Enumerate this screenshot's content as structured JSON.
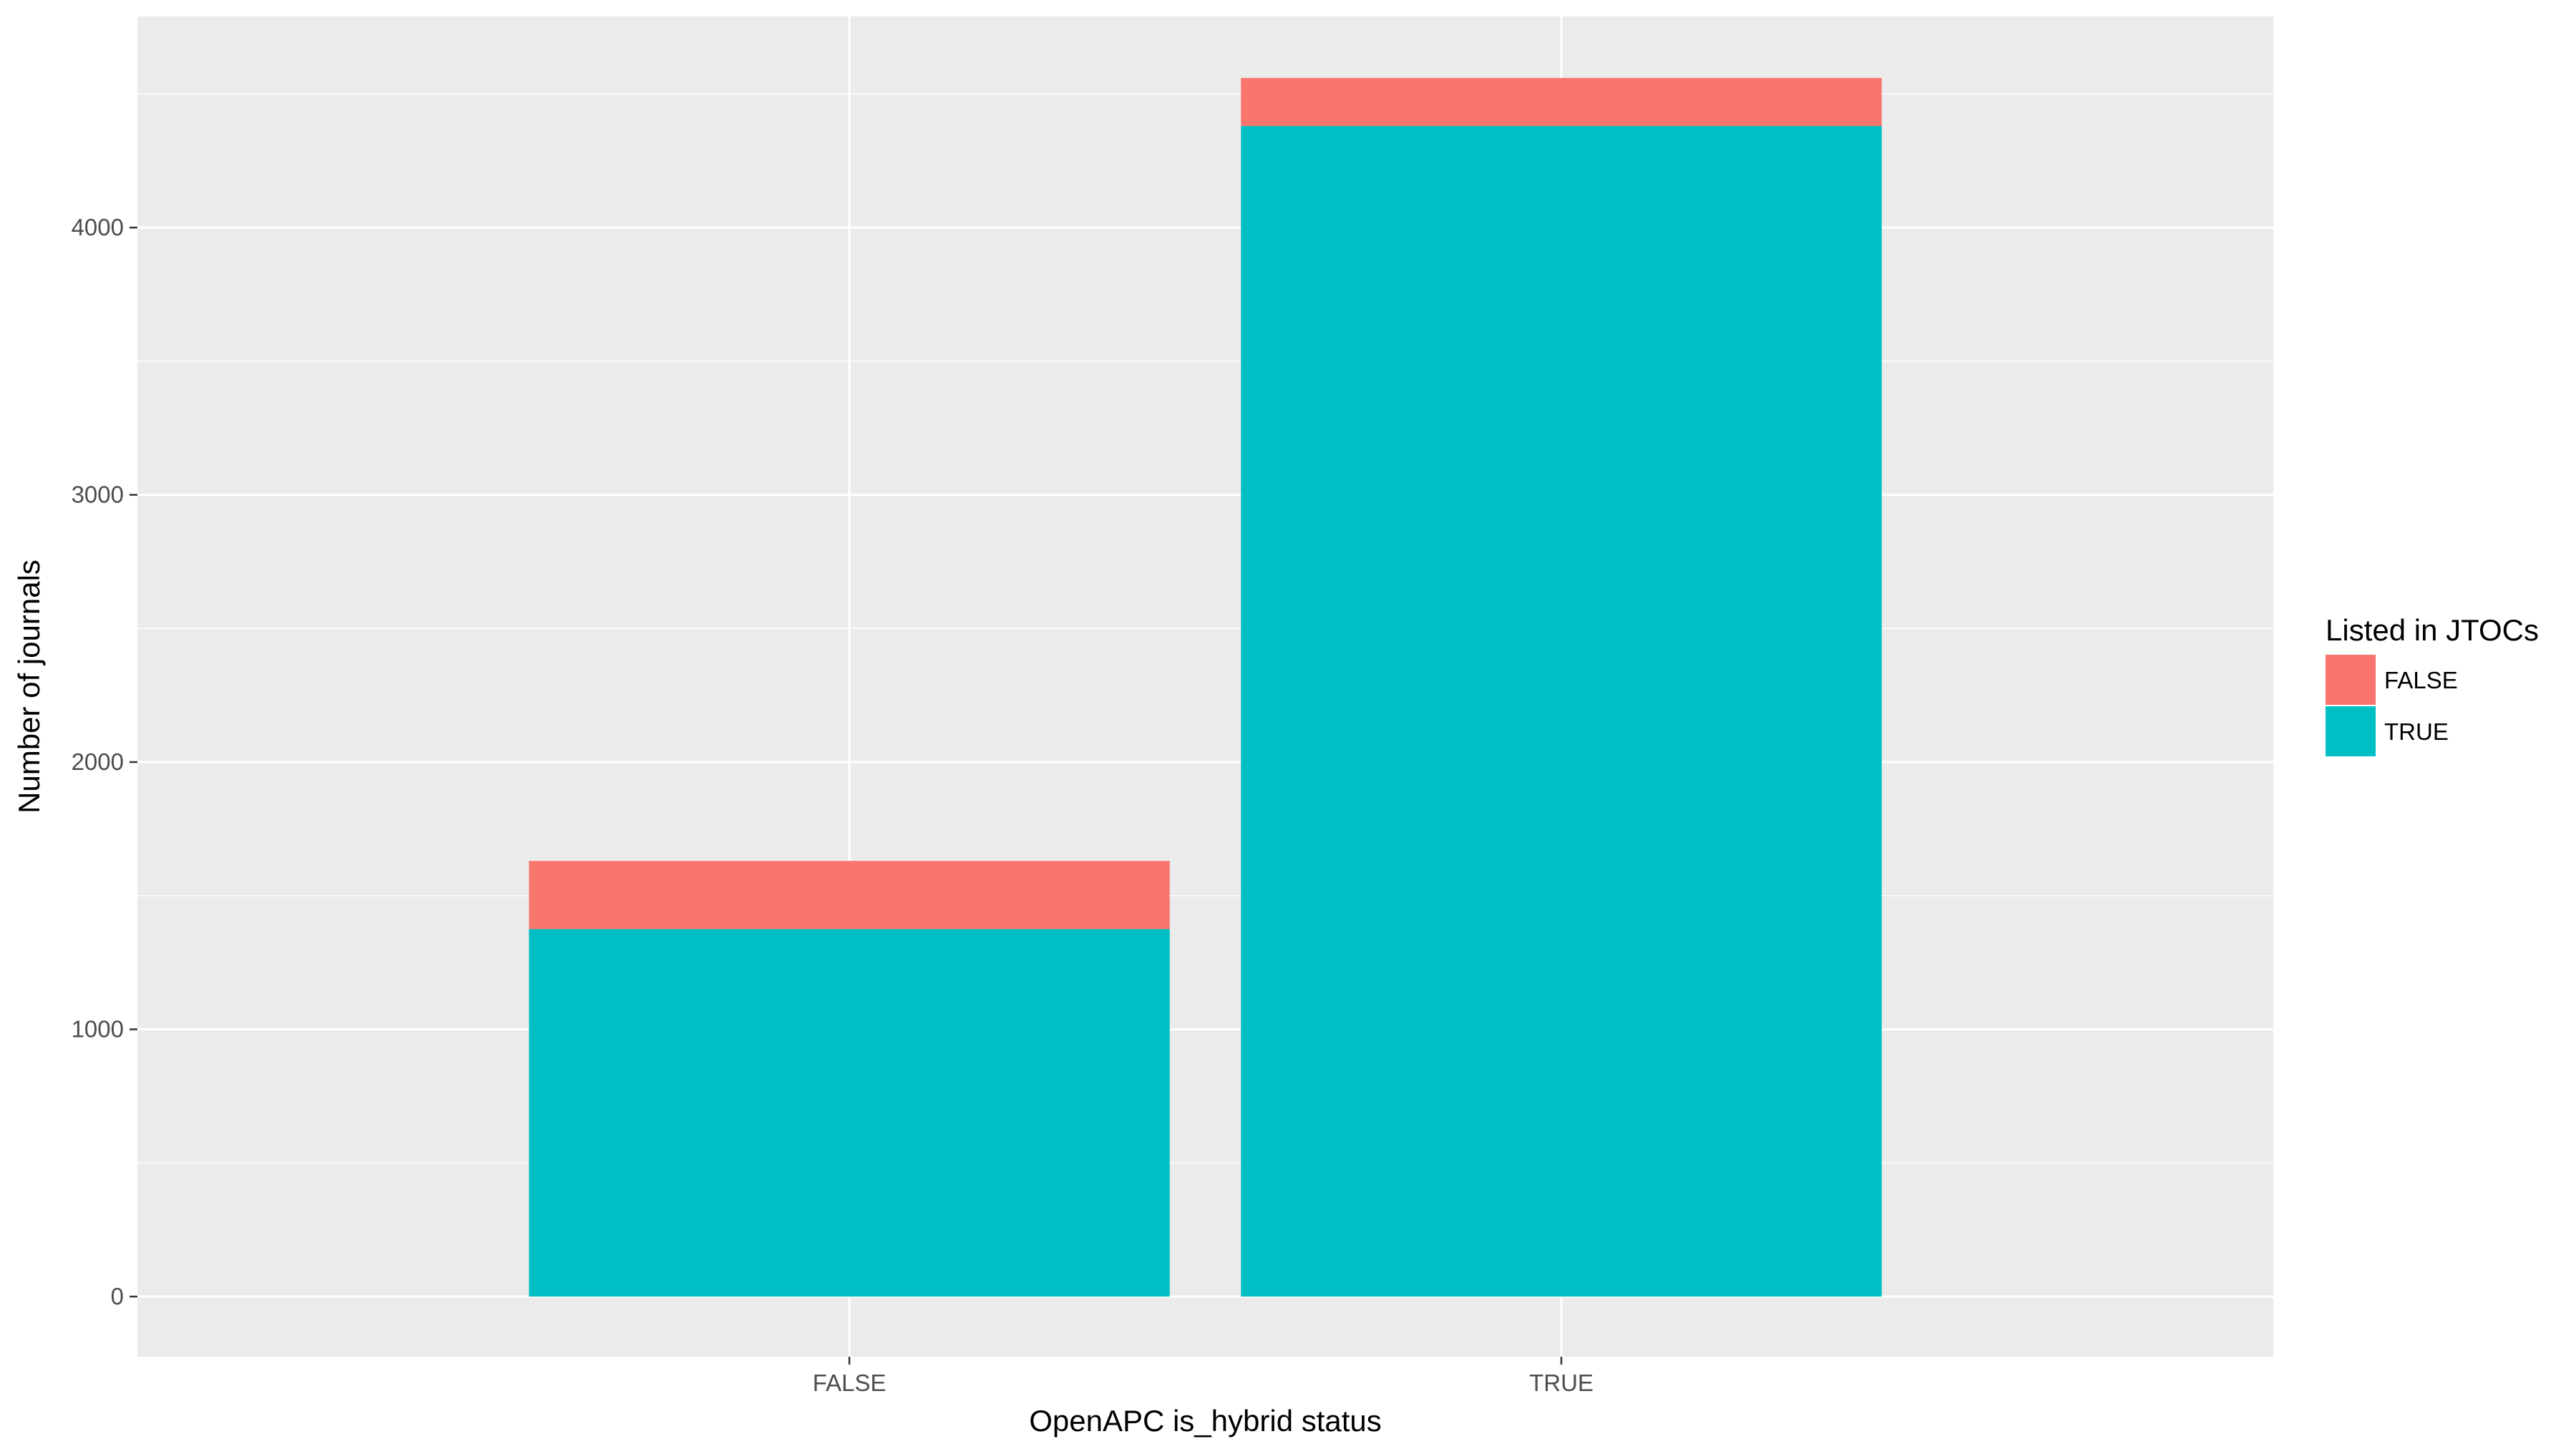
{
  "chart_data": {
    "type": "bar",
    "stacked": true,
    "categories": [
      "FALSE",
      "TRUE"
    ],
    "series": [
      {
        "name": "TRUE",
        "values": [
          1375,
          4380
        ],
        "color": "#00BFC4"
      },
      {
        "name": "FALSE",
        "values": [
          255,
          180
        ],
        "color": "#F8766D"
      }
    ],
    "xlabel": "OpenAPC is_hybrid status",
    "ylabel": "Number of journals",
    "ylim": [
      -225,
      4790
    ],
    "yticks": [
      0,
      1000,
      2000,
      3000,
      4000
    ],
    "yticks_labels": [
      "0",
      "1000",
      "2000",
      "3000",
      "4000"
    ],
    "grid": true,
    "panel_background": "#EBEBEB",
    "legend": {
      "title": "Listed in JTOCs",
      "position": "right",
      "items": [
        {
          "label": "FALSE",
          "color": "#F8766D"
        },
        {
          "label": "TRUE",
          "color": "#00BFC4"
        }
      ]
    }
  }
}
